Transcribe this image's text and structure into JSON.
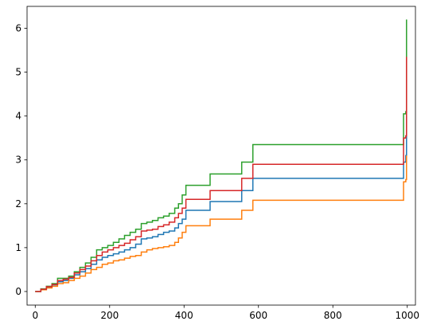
{
  "chart_data": {
    "type": "line",
    "title": "",
    "xlabel": "",
    "ylabel": "",
    "xlim": [
      -22,
      1022
    ],
    "ylim": [
      -0.31,
      6.5
    ],
    "xticks": [
      0,
      200,
      400,
      600,
      800,
      1000
    ],
    "yticks": [
      0,
      1,
      2,
      3,
      4,
      5,
      6
    ],
    "grid": false,
    "legend": "none",
    "step": "post",
    "series": [
      {
        "color": "#1f77b4",
        "points": [
          [
            0,
            0
          ],
          [
            15,
            0.05
          ],
          [
            30,
            0.1
          ],
          [
            45,
            0.15
          ],
          [
            60,
            0.22
          ],
          [
            75,
            0.25
          ],
          [
            90,
            0.3
          ],
          [
            105,
            0.38
          ],
          [
            120,
            0.45
          ],
          [
            135,
            0.52
          ],
          [
            150,
            0.62
          ],
          [
            165,
            0.72
          ],
          [
            180,
            0.78
          ],
          [
            195,
            0.82
          ],
          [
            210,
            0.86
          ],
          [
            225,
            0.9
          ],
          [
            240,
            0.95
          ],
          [
            255,
            1.0
          ],
          [
            270,
            1.08
          ],
          [
            285,
            1.2
          ],
          [
            300,
            1.22
          ],
          [
            315,
            1.25
          ],
          [
            330,
            1.3
          ],
          [
            345,
            1.35
          ],
          [
            360,
            1.38
          ],
          [
            375,
            1.45
          ],
          [
            385,
            1.55
          ],
          [
            395,
            1.65
          ],
          [
            405,
            1.85
          ],
          [
            470,
            2.05
          ],
          [
            555,
            2.3
          ],
          [
            585,
            2.58
          ],
          [
            990,
            2.95
          ],
          [
            996,
            3.1
          ],
          [
            998,
            4.0
          ]
        ]
      },
      {
        "color": "#ff7f0e",
        "points": [
          [
            0,
            0
          ],
          [
            15,
            0.04
          ],
          [
            30,
            0.08
          ],
          [
            45,
            0.12
          ],
          [
            60,
            0.18
          ],
          [
            75,
            0.2
          ],
          [
            90,
            0.25
          ],
          [
            105,
            0.3
          ],
          [
            120,
            0.35
          ],
          [
            135,
            0.42
          ],
          [
            150,
            0.5
          ],
          [
            165,
            0.55
          ],
          [
            180,
            0.62
          ],
          [
            195,
            0.65
          ],
          [
            210,
            0.7
          ],
          [
            225,
            0.72
          ],
          [
            240,
            0.76
          ],
          [
            255,
            0.8
          ],
          [
            270,
            0.82
          ],
          [
            285,
            0.9
          ],
          [
            300,
            0.95
          ],
          [
            315,
            0.98
          ],
          [
            330,
            1.0
          ],
          [
            345,
            1.02
          ],
          [
            360,
            1.05
          ],
          [
            375,
            1.12
          ],
          [
            385,
            1.22
          ],
          [
            395,
            1.35
          ],
          [
            405,
            1.5
          ],
          [
            470,
            1.65
          ],
          [
            555,
            1.85
          ],
          [
            585,
            2.08
          ],
          [
            990,
            2.5
          ],
          [
            996,
            2.55
          ],
          [
            998,
            3.1
          ]
        ]
      },
      {
        "color": "#2ca02c",
        "points": [
          [
            0,
            0
          ],
          [
            15,
            0.06
          ],
          [
            30,
            0.12
          ],
          [
            45,
            0.18
          ],
          [
            60,
            0.3
          ],
          [
            75,
            0.3
          ],
          [
            90,
            0.35
          ],
          [
            105,
            0.45
          ],
          [
            120,
            0.55
          ],
          [
            135,
            0.65
          ],
          [
            150,
            0.78
          ],
          [
            165,
            0.95
          ],
          [
            180,
            1.0
          ],
          [
            195,
            1.05
          ],
          [
            210,
            1.12
          ],
          [
            225,
            1.2
          ],
          [
            240,
            1.28
          ],
          [
            255,
            1.35
          ],
          [
            270,
            1.42
          ],
          [
            285,
            1.55
          ],
          [
            300,
            1.58
          ],
          [
            315,
            1.62
          ],
          [
            330,
            1.68
          ],
          [
            345,
            1.72
          ],
          [
            360,
            1.78
          ],
          [
            375,
            1.9
          ],
          [
            385,
            2.0
          ],
          [
            395,
            2.2
          ],
          [
            405,
            2.42
          ],
          [
            470,
            2.68
          ],
          [
            555,
            2.95
          ],
          [
            585,
            3.35
          ],
          [
            990,
            4.05
          ],
          [
            996,
            4.1
          ],
          [
            998,
            6.2
          ]
        ]
      },
      {
        "color": "#d62728",
        "points": [
          [
            0,
            0
          ],
          [
            15,
            0.05
          ],
          [
            30,
            0.11
          ],
          [
            45,
            0.16
          ],
          [
            60,
            0.25
          ],
          [
            75,
            0.28
          ],
          [
            90,
            0.32
          ],
          [
            105,
            0.42
          ],
          [
            120,
            0.5
          ],
          [
            135,
            0.58
          ],
          [
            150,
            0.7
          ],
          [
            165,
            0.82
          ],
          [
            180,
            0.9
          ],
          [
            195,
            0.95
          ],
          [
            210,
            1.0
          ],
          [
            225,
            1.05
          ],
          [
            240,
            1.1
          ],
          [
            255,
            1.18
          ],
          [
            270,
            1.25
          ],
          [
            285,
            1.38
          ],
          [
            300,
            1.4
          ],
          [
            315,
            1.42
          ],
          [
            330,
            1.48
          ],
          [
            345,
            1.52
          ],
          [
            360,
            1.58
          ],
          [
            375,
            1.68
          ],
          [
            385,
            1.78
          ],
          [
            395,
            1.9
          ],
          [
            405,
            2.1
          ],
          [
            470,
            2.3
          ],
          [
            555,
            2.58
          ],
          [
            585,
            2.9
          ],
          [
            990,
            3.5
          ],
          [
            996,
            3.55
          ],
          [
            998,
            5.35
          ]
        ]
      }
    ]
  }
}
